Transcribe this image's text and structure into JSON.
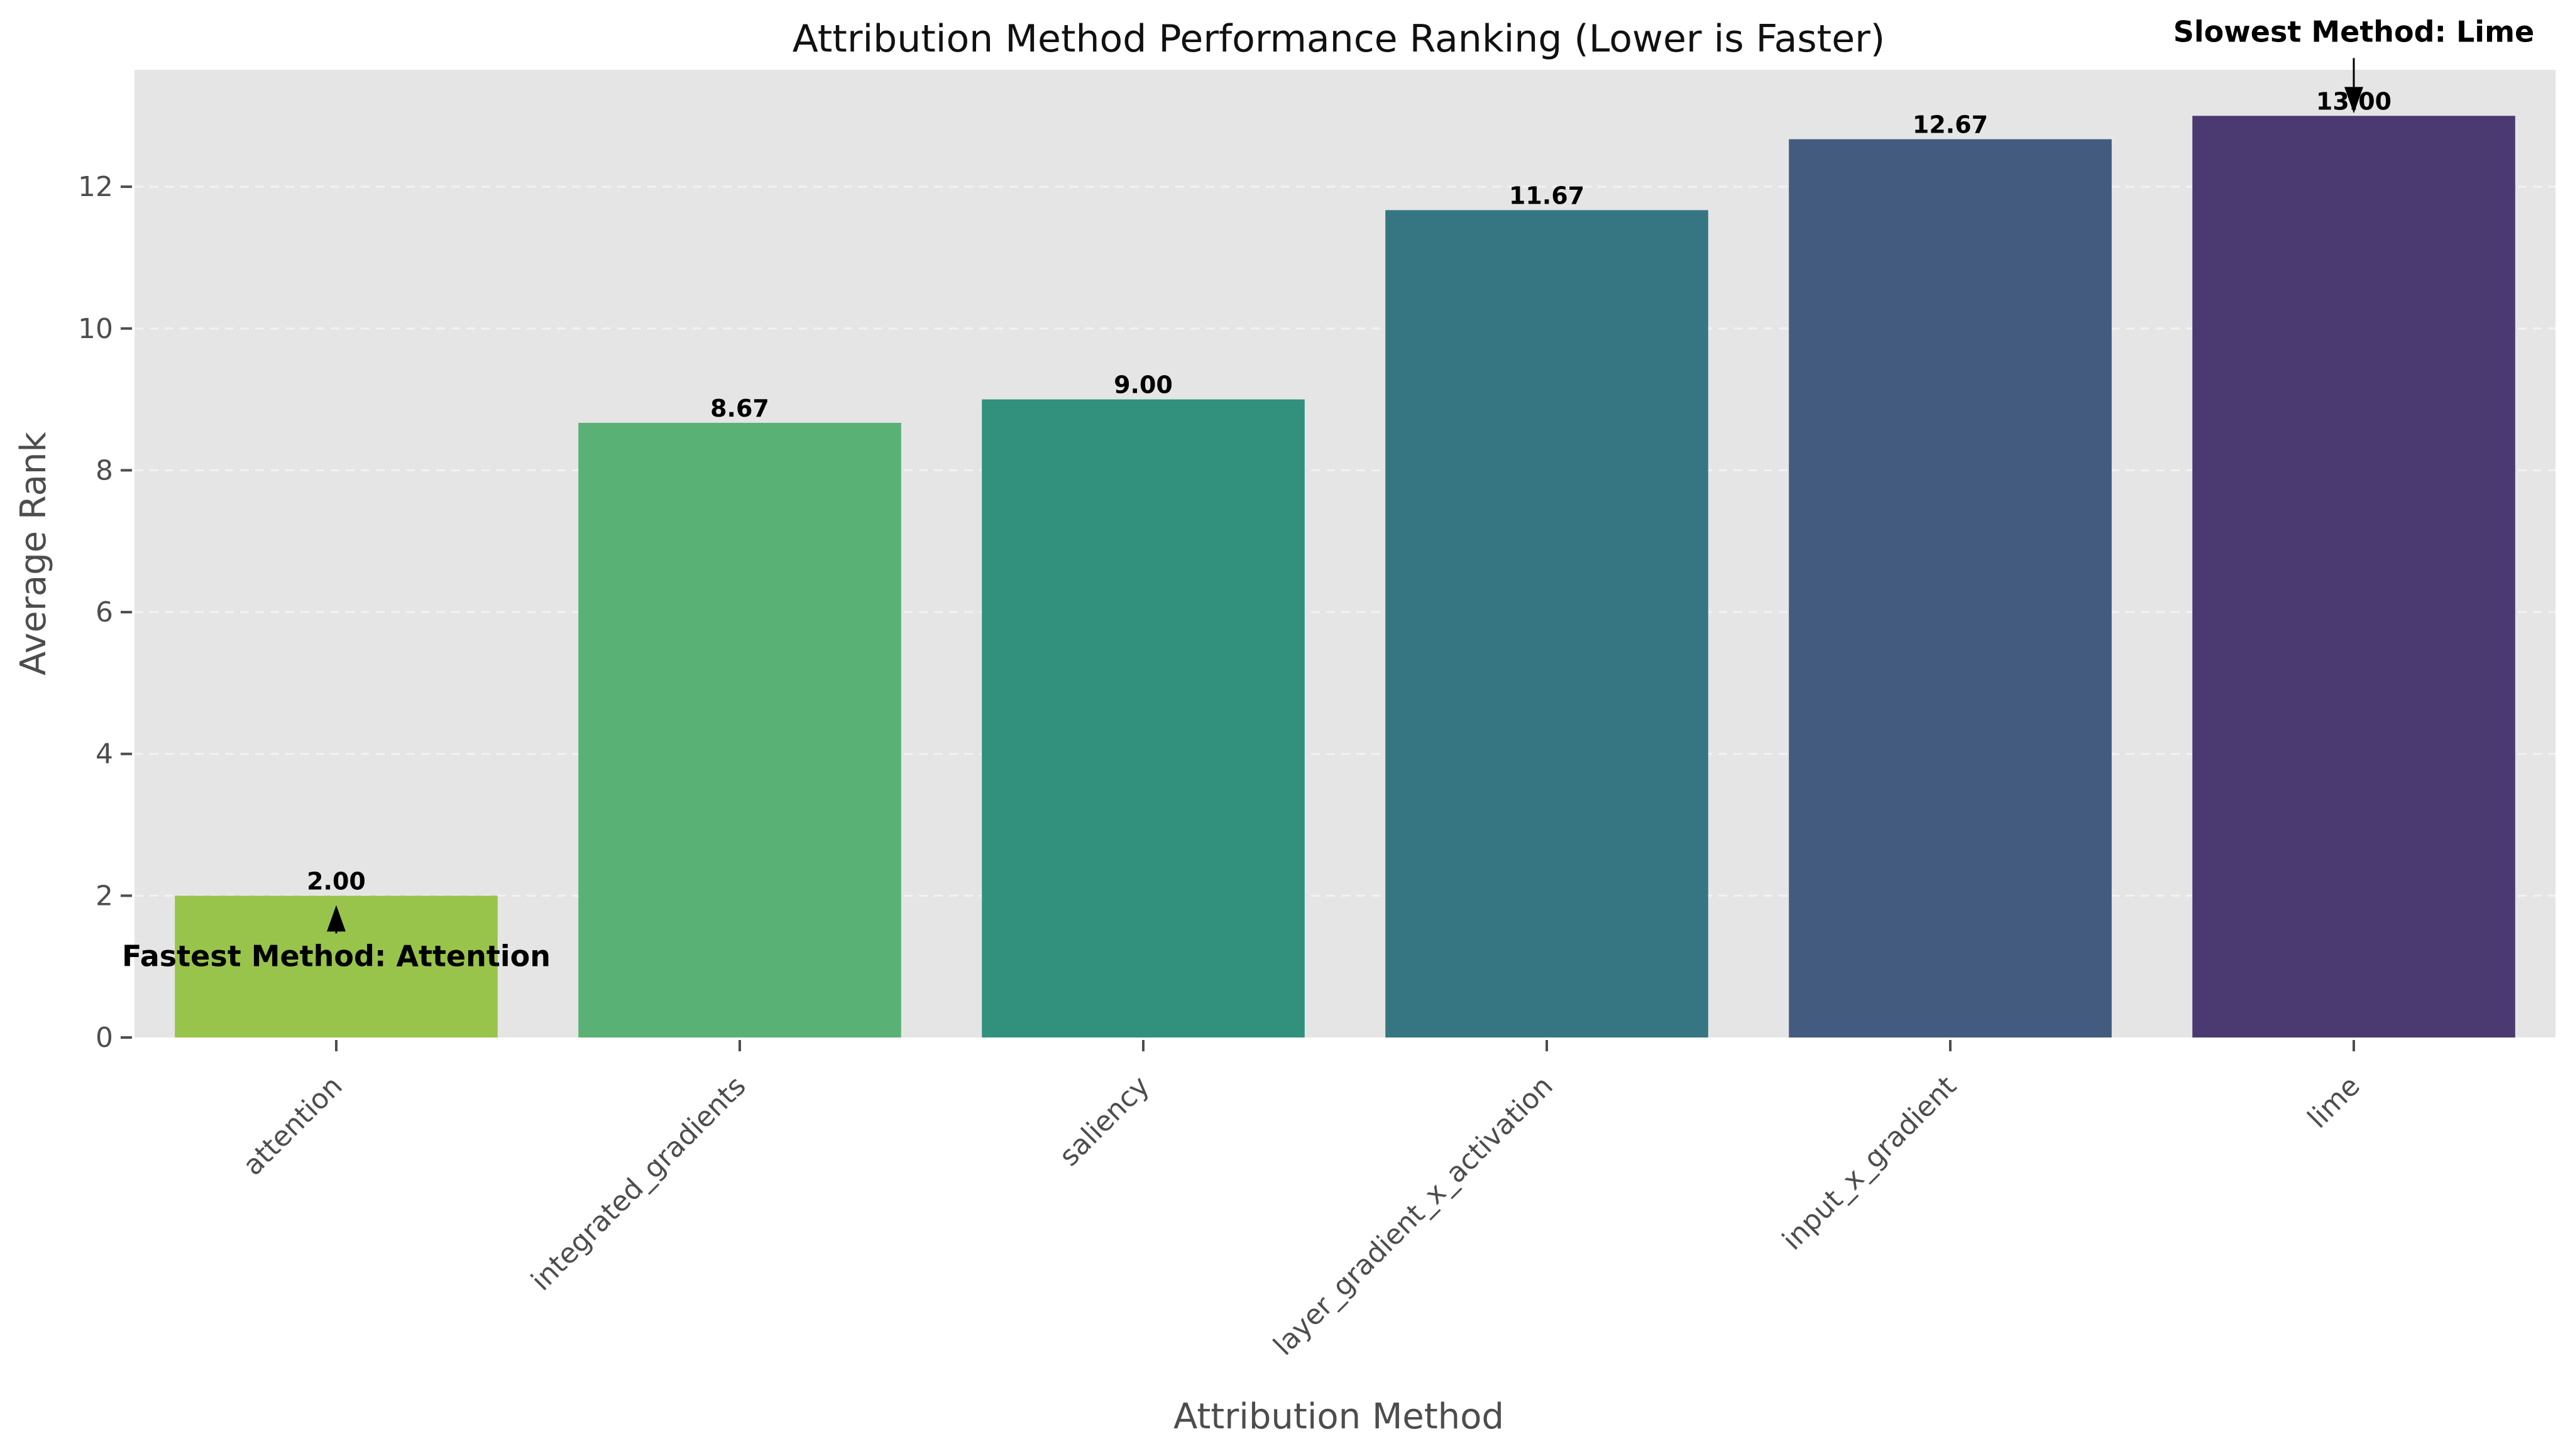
{
  "chart_data": {
    "type": "bar",
    "title": "Attribution Method Performance Ranking (Lower is Faster)",
    "xlabel": "Attribution Method",
    "ylabel": "Average Rank",
    "categories": [
      "attention",
      "integrated_gradients",
      "saliency",
      "layer_gradient_x_activation",
      "input_x_gradient",
      "lime"
    ],
    "values": [
      2.0,
      8.67,
      9.0,
      11.67,
      12.67,
      13.0
    ],
    "value_labels": [
      "2.00",
      "8.67",
      "9.00",
      "11.67",
      "12.67",
      "13.00"
    ],
    "colors": [
      "#98c44b",
      "#5ab175",
      "#31917d",
      "#357682",
      "#425b7f",
      "#4a3a71"
    ],
    "ylim": [
      0,
      13.65
    ],
    "yticks": [
      0,
      2,
      4,
      6,
      8,
      10,
      12
    ],
    "grid": true,
    "legend": "none",
    "annotations": [
      {
        "text": "Fastest Method: Attention",
        "target_category": "attention",
        "target_value": 2.0
      },
      {
        "text": "Slowest Method: Lime",
        "target_category": "lime",
        "target_value": 13.0
      }
    ]
  }
}
